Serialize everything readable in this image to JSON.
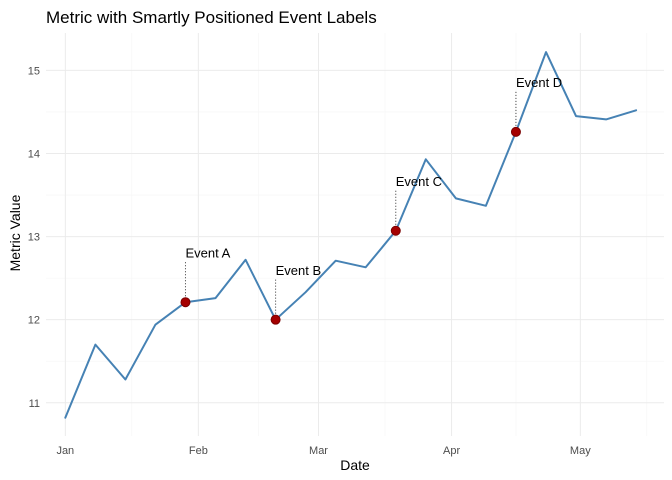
{
  "chart_data": {
    "type": "line",
    "title": "Metric with Smartly Positioned Event Labels",
    "xlabel": "Date",
    "ylabel": "Metric Value",
    "ylim": [
      10.6,
      15.45
    ],
    "xlim_days": [
      -4.5,
      139.5
    ],
    "grid": true,
    "x_ticks": [
      {
        "label": "Jan",
        "day": 0
      },
      {
        "label": "Feb",
        "day": 31
      },
      {
        "label": "Mar",
        "day": 59
      },
      {
        "label": "Apr",
        "day": 90
      },
      {
        "label": "May",
        "day": 120
      }
    ],
    "y_ticks": [
      11,
      12,
      13,
      14,
      15
    ],
    "series": [
      {
        "name": "Metric",
        "color": "#4682b4",
        "points": [
          {
            "day": 0,
            "value": 10.82
          },
          {
            "day": 7,
            "value": 11.7
          },
          {
            "day": 14,
            "value": 11.28
          },
          {
            "day": 21,
            "value": 11.94
          },
          {
            "day": 28,
            "value": 12.21
          },
          {
            "day": 35,
            "value": 12.26
          },
          {
            "day": 42,
            "value": 12.72
          },
          {
            "day": 49,
            "value": 12.0
          },
          {
            "day": 56,
            "value": 12.33
          },
          {
            "day": 63,
            "value": 12.71
          },
          {
            "day": 70,
            "value": 12.63
          },
          {
            "day": 77,
            "value": 13.07
          },
          {
            "day": 84,
            "value": 13.93
          },
          {
            "day": 91,
            "value": 13.46
          },
          {
            "day": 98,
            "value": 13.37
          },
          {
            "day": 105,
            "value": 14.26
          },
          {
            "day": 112,
            "value": 15.22
          },
          {
            "day": 119,
            "value": 14.45
          },
          {
            "day": 126,
            "value": 14.41
          },
          {
            "day": 133,
            "value": 14.52
          }
        ]
      }
    ],
    "events": [
      {
        "label": "Event A",
        "day": 28,
        "value": 12.21,
        "label_value": 12.75
      },
      {
        "label": "Event B",
        "day": 49,
        "value": 12.0,
        "label_value": 12.54
      },
      {
        "label": "Event C",
        "day": 77,
        "value": 13.07,
        "label_value": 13.61
      },
      {
        "label": "Event D",
        "day": 105,
        "value": 14.26,
        "label_value": 14.8
      }
    ],
    "colors": {
      "line": "#4682b4",
      "event_point": "#a50000",
      "grid_major": "#ebebeb",
      "grid_minor": "#f5f5f5"
    }
  }
}
